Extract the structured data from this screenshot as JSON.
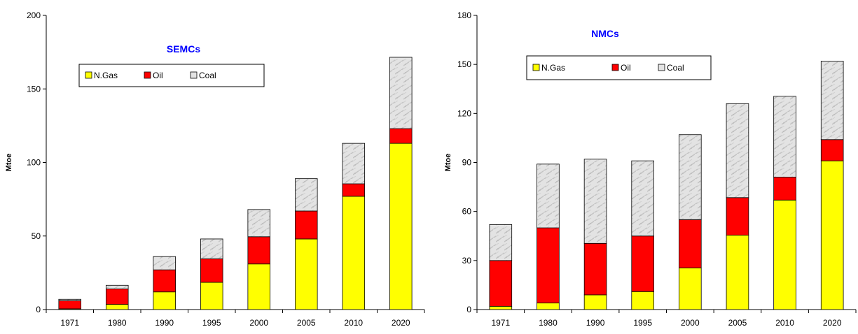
{
  "chart_data": [
    {
      "type": "bar",
      "stacked": true,
      "title": "SEMCs",
      "xlabel": "",
      "ylabel": "Mtoe",
      "ylim": [
        0,
        200
      ],
      "yticks": [
        0,
        50,
        100,
        150,
        200
      ],
      "categories": [
        "1971",
        "1980",
        "1990",
        "1995",
        "2000",
        "2005",
        "2010",
        "2020"
      ],
      "series": [
        {
          "name": "N.Gas",
          "color": "#ffff00",
          "values": [
            0.5,
            3.5,
            12,
            18.5,
            31,
            48,
            77,
            113
          ]
        },
        {
          "name": "Oil",
          "color": "#ff0000",
          "values": [
            5.5,
            10.5,
            15,
            16,
            18.5,
            19,
            8.5,
            10
          ]
        },
        {
          "name": "Coal",
          "color": "#d9d9d9",
          "values": [
            1,
            2.5,
            9,
            13.5,
            18.5,
            22,
            27.5,
            48.5
          ]
        }
      ],
      "legend": "top-left",
      "grid": false
    },
    {
      "type": "bar",
      "stacked": true,
      "title": "NMCs",
      "xlabel": "",
      "ylabel": "Mtoe",
      "ylim": [
        0,
        180
      ],
      "yticks": [
        0,
        30,
        60,
        90,
        120,
        150,
        180
      ],
      "categories": [
        "1971",
        "1980",
        "1990",
        "1995",
        "2000",
        "2005",
        "2010",
        "2020"
      ],
      "series": [
        {
          "name": "N.Gas",
          "color": "#ffff00",
          "values": [
            2,
            4,
            9,
            11,
            25.5,
            45.5,
            67,
            91
          ]
        },
        {
          "name": "Oil",
          "color": "#ff0000",
          "values": [
            28,
            46,
            31.5,
            34,
            29.5,
            23,
            14,
            13
          ]
        },
        {
          "name": "Coal",
          "color": "#d9d9d9",
          "values": [
            22,
            39,
            51.5,
            46,
            52,
            57.5,
            49.5,
            48
          ]
        }
      ],
      "legend": "top-left",
      "grid": false
    }
  ]
}
